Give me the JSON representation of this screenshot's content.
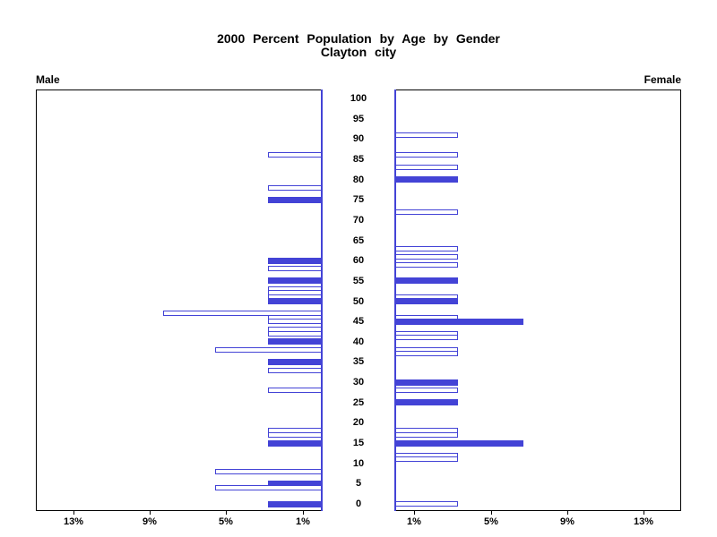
{
  "title": {
    "line1": "2000 Percent Population by Age by Gender",
    "line2": "Clayton city"
  },
  "panel_labels": {
    "left": "Male",
    "right": "Female"
  },
  "colors": {
    "bar_fill": "#4343d6",
    "bar_outline": "#4343d6",
    "frame": "#000000",
    "background": "#ffffff",
    "text": "#000000"
  },
  "chart_data": {
    "type": "bar",
    "subtype": "population-pyramid",
    "title": "2000 Percent Population by Age by Gender",
    "subtitle": "Clayton city",
    "legend": "none",
    "grid": false,
    "x_axis": {
      "unit": "percent of population",
      "xlim_pct": [
        0,
        15
      ],
      "ticks_pct": [
        1,
        5,
        9,
        13
      ],
      "tick_labels": [
        "1%",
        "5%",
        "9%",
        "13%"
      ],
      "male_direction": "right-to-left",
      "female_direction": "left-to-right"
    },
    "y_axis": {
      "unit": "age in years",
      "ylim_age": [
        0,
        100
      ],
      "ticks_age": [
        0,
        5,
        10,
        15,
        20,
        25,
        30,
        35,
        40,
        45,
        50,
        55,
        60,
        65,
        70,
        75,
        80,
        85,
        90,
        95,
        100
      ]
    },
    "male": {
      "label": "Male",
      "bars": [
        {
          "age": 86,
          "pct": 2.8,
          "filled": false
        },
        {
          "age": 78,
          "pct": 2.8,
          "filled": false
        },
        {
          "age": 75,
          "pct": 2.8,
          "filled": true
        },
        {
          "age": 60,
          "pct": 2.8,
          "filled": true
        },
        {
          "age": 58,
          "pct": 2.8,
          "filled": false
        },
        {
          "age": 55,
          "pct": 2.8,
          "filled": true
        },
        {
          "age": 53,
          "pct": 2.8,
          "filled": false
        },
        {
          "age": 52,
          "pct": 2.8,
          "filled": false
        },
        {
          "age": 51,
          "pct": 2.8,
          "filled": false
        },
        {
          "age": 50,
          "pct": 2.8,
          "filled": true
        },
        {
          "age": 47,
          "pct": 8.3,
          "filled": false
        },
        {
          "age": 46,
          "pct": 2.8,
          "filled": false
        },
        {
          "age": 45,
          "pct": 2.8,
          "filled": false
        },
        {
          "age": 43,
          "pct": 2.8,
          "filled": false
        },
        {
          "age": 42,
          "pct": 2.8,
          "filled": false
        },
        {
          "age": 40,
          "pct": 2.8,
          "filled": true
        },
        {
          "age": 38,
          "pct": 5.6,
          "filled": false
        },
        {
          "age": 35,
          "pct": 2.8,
          "filled": true
        },
        {
          "age": 33,
          "pct": 2.8,
          "filled": false
        },
        {
          "age": 28,
          "pct": 2.8,
          "filled": false
        },
        {
          "age": 18,
          "pct": 2.8,
          "filled": false
        },
        {
          "age": 17,
          "pct": 2.8,
          "filled": false
        },
        {
          "age": 15,
          "pct": 2.8,
          "filled": true
        },
        {
          "age": 8,
          "pct": 5.6,
          "filled": false
        },
        {
          "age": 5,
          "pct": 2.8,
          "filled": true
        },
        {
          "age": 4,
          "pct": 5.6,
          "filled": false
        },
        {
          "age": 0,
          "pct": 2.8,
          "filled": true
        }
      ]
    },
    "female": {
      "label": "Female",
      "bars": [
        {
          "age": 91,
          "pct": 3.3,
          "filled": false
        },
        {
          "age": 86,
          "pct": 3.3,
          "filled": false
        },
        {
          "age": 83,
          "pct": 3.3,
          "filled": false
        },
        {
          "age": 80,
          "pct": 3.3,
          "filled": true
        },
        {
          "age": 72,
          "pct": 3.3,
          "filled": false
        },
        {
          "age": 63,
          "pct": 3.3,
          "filled": false
        },
        {
          "age": 61,
          "pct": 3.3,
          "filled": false
        },
        {
          "age": 59,
          "pct": 3.3,
          "filled": false
        },
        {
          "age": 55,
          "pct": 3.3,
          "filled": true
        },
        {
          "age": 51,
          "pct": 3.3,
          "filled": false
        },
        {
          "age": 50,
          "pct": 3.3,
          "filled": true
        },
        {
          "age": 46,
          "pct": 3.3,
          "filled": false
        },
        {
          "age": 45,
          "pct": 6.7,
          "filled": true
        },
        {
          "age": 42,
          "pct": 3.3,
          "filled": false
        },
        {
          "age": 41,
          "pct": 3.3,
          "filled": false
        },
        {
          "age": 38,
          "pct": 3.3,
          "filled": false
        },
        {
          "age": 37,
          "pct": 3.3,
          "filled": false
        },
        {
          "age": 30,
          "pct": 3.3,
          "filled": true
        },
        {
          "age": 28,
          "pct": 3.3,
          "filled": false
        },
        {
          "age": 25,
          "pct": 3.3,
          "filled": true
        },
        {
          "age": 18,
          "pct": 3.3,
          "filled": false
        },
        {
          "age": 17,
          "pct": 3.3,
          "filled": false
        },
        {
          "age": 15,
          "pct": 6.7,
          "filled": true
        },
        {
          "age": 12,
          "pct": 3.3,
          "filled": false
        },
        {
          "age": 11,
          "pct": 3.3,
          "filled": false
        },
        {
          "age": 0,
          "pct": 3.3,
          "filled": false
        }
      ]
    }
  }
}
